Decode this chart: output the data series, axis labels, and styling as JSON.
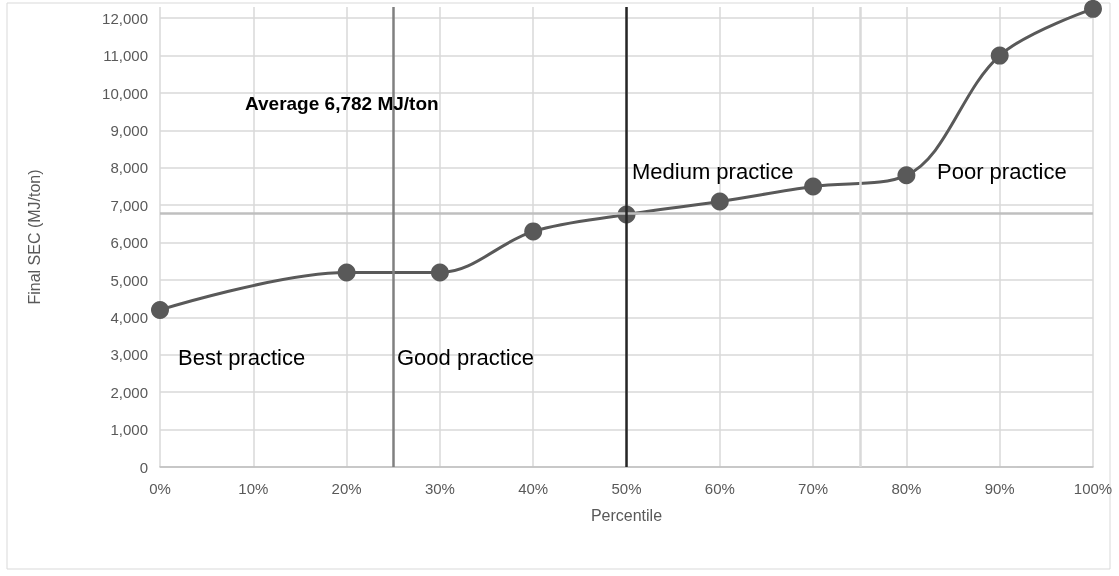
{
  "chart_data": {
    "type": "line",
    "xlabel": "Percentile",
    "ylabel": "Final SEC (MJ/ton)",
    "x": [
      0,
      20,
      30,
      40,
      50,
      60,
      70,
      80,
      90,
      100
    ],
    "series": [
      {
        "color": "#595959",
        "values": [
          4200,
          5200,
          5200,
          6300,
          6750,
          7100,
          7500,
          7800,
          11000,
          12250
        ]
      }
    ],
    "xlim": [
      0,
      100
    ],
    "xticks": [
      {
        "value": 0,
        "label": "0%"
      },
      {
        "value": 10,
        "label": "10%"
      },
      {
        "value": 20,
        "label": "20%"
      },
      {
        "value": 30,
        "label": "30%"
      },
      {
        "value": 40,
        "label": "40%"
      },
      {
        "value": 50,
        "label": "50%"
      },
      {
        "value": 60,
        "label": "60%"
      },
      {
        "value": 70,
        "label": "70%"
      },
      {
        "value": 80,
        "label": "80%"
      },
      {
        "value": 90,
        "label": "90%"
      },
      {
        "value": 100,
        "label": "100%"
      }
    ],
    "ylim": [
      0,
      12300
    ],
    "yticks": [
      {
        "value": 0,
        "label": "0"
      },
      {
        "value": 1000,
        "label": "1,000"
      },
      {
        "value": 2000,
        "label": "2,000"
      },
      {
        "value": 3000,
        "label": "3,000"
      },
      {
        "value": 4000,
        "label": "4,000"
      },
      {
        "value": 5000,
        "label": "5,000"
      },
      {
        "value": 6000,
        "label": "6,000"
      },
      {
        "value": 7000,
        "label": "7,000"
      },
      {
        "value": 8000,
        "label": "8,000"
      },
      {
        "value": 9000,
        "label": "9,000"
      },
      {
        "value": 10000,
        "label": "10,000"
      },
      {
        "value": 11000,
        "label": "11,000"
      },
      {
        "value": 12000,
        "label": "12,000"
      }
    ],
    "ref_lines": [
      {
        "axis": "y",
        "value": 6782,
        "color": "#bfbfbf"
      },
      {
        "axis": "x",
        "value": 25,
        "color": "#808080"
      },
      {
        "axis": "x",
        "value": 50,
        "color": "#262626"
      },
      {
        "axis": "x",
        "value": 75,
        "color": "#d9d9d9"
      }
    ],
    "annotations": [
      "Average 6,782 MJ/ton",
      "Best practice",
      "Good practice",
      "Medium practice",
      "Poor practice"
    ],
    "grid": true,
    "marker": "circle",
    "line_style": "solid"
  }
}
